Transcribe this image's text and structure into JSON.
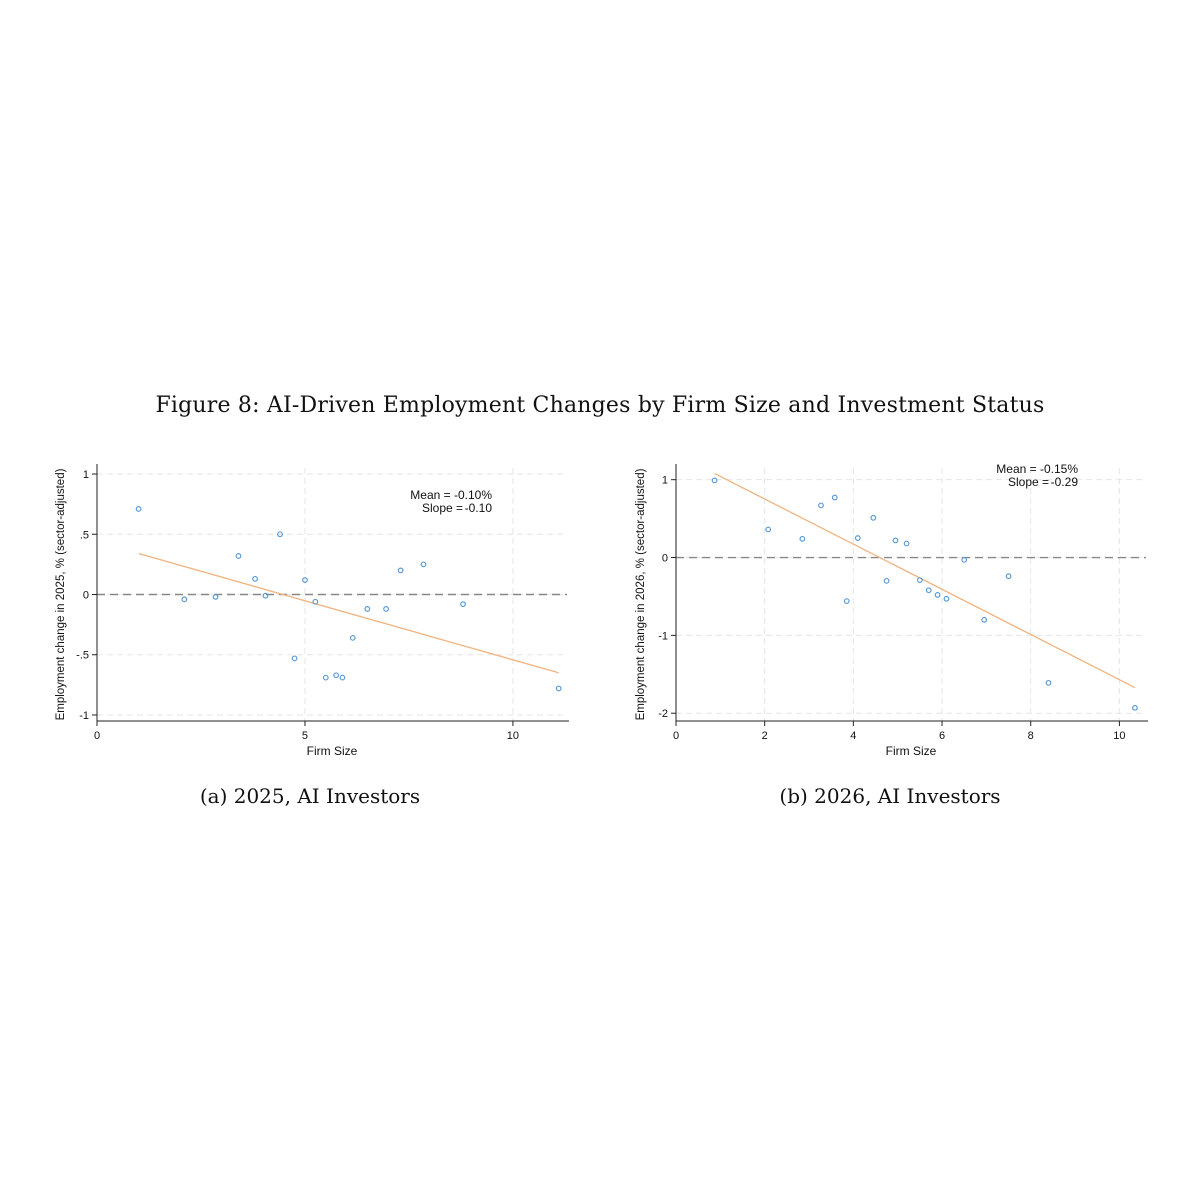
{
  "figure_title": "Figure 8: AI-Driven Employment Changes by Firm Size and Investment Status",
  "chart_data": [
    {
      "type": "scatter",
      "caption": "(a) 2025, AI Investors",
      "xlabel": "Firm Size",
      "ylabel": "Employment change in 2025, % (sector-adjusted)",
      "xlim": [
        0,
        11.3
      ],
      "ylim": [
        -1.05,
        1.05
      ],
      "xticks": [
        0,
        5,
        10
      ],
      "xtick_labels": [
        "0",
        "5",
        "10"
      ],
      "yticks": [
        -1,
        -0.5,
        0,
        0.5,
        1
      ],
      "ytick_labels": [
        "-1",
        "-.5",
        "0",
        ".5",
        "1"
      ],
      "grid": true,
      "reference_line_y": 0,
      "annotation": {
        "mean": "Mean = -0.10%",
        "slope_label": "Slope =",
        "slope_value": "-0.10"
      },
      "fit_line": {
        "x": [
          1.0,
          11.1
        ],
        "y": [
          0.34,
          -0.65
        ]
      },
      "colors": {
        "points": "#5b9bd5",
        "fit": "#f0b37e",
        "ref": "#888888",
        "grid": "#e6e6e6"
      },
      "points": {
        "x": [
          1.0,
          2.1,
          2.85,
          3.4,
          3.8,
          4.05,
          4.4,
          4.75,
          5.0,
          5.25,
          5.5,
          5.75,
          5.9,
          6.15,
          6.5,
          6.95,
          7.3,
          7.85,
          8.8,
          11.1
        ],
        "y": [
          0.71,
          -0.04,
          -0.02,
          0.32,
          0.13,
          -0.01,
          0.5,
          -0.53,
          0.12,
          -0.06,
          -0.69,
          -0.67,
          -0.69,
          -0.36,
          -0.12,
          -0.12,
          0.2,
          0.25,
          -0.08,
          -0.78
        ]
      }
    },
    {
      "type": "scatter",
      "caption": "(b) 2026, AI Investors",
      "xlabel": "Firm Size",
      "ylabel": "Employment change in 2026, % (sector-adjusted)",
      "xlim": [
        0,
        10.6
      ],
      "ylim": [
        -2.1,
        1.15
      ],
      "xticks": [
        0,
        2,
        4,
        6,
        8,
        10
      ],
      "xtick_labels": [
        "0",
        "2",
        "4",
        "6",
        "8",
        "10"
      ],
      "yticks": [
        -2,
        -1,
        0,
        1
      ],
      "ytick_labels": [
        "-2",
        "-1",
        "0",
        "1"
      ],
      "grid": true,
      "reference_line_y": 0,
      "annotation": {
        "mean": "Mean = -0.15%",
        "slope_label": "Slope =",
        "slope_value": "-0.29"
      },
      "fit_line": {
        "x": [
          0.87,
          10.35
        ],
        "y": [
          1.08,
          -1.67
        ]
      },
      "colors": {
        "points": "#5b9bd5",
        "fit": "#f0b37e",
        "ref": "#888888",
        "grid": "#e6e6e6"
      },
      "points": {
        "x": [
          0.87,
          2.08,
          2.85,
          3.27,
          3.58,
          3.85,
          4.1,
          4.45,
          4.75,
          4.95,
          5.2,
          5.5,
          5.7,
          5.9,
          6.1,
          6.5,
          6.95,
          7.5,
          8.4,
          10.35
        ],
        "y": [
          0.99,
          0.36,
          0.24,
          0.67,
          0.77,
          -0.56,
          0.25,
          0.51,
          -0.3,
          0.22,
          0.18,
          -0.29,
          -0.42,
          -0.48,
          -0.53,
          -0.03,
          -0.8,
          -0.24,
          -1.61,
          -1.93
        ]
      }
    }
  ]
}
